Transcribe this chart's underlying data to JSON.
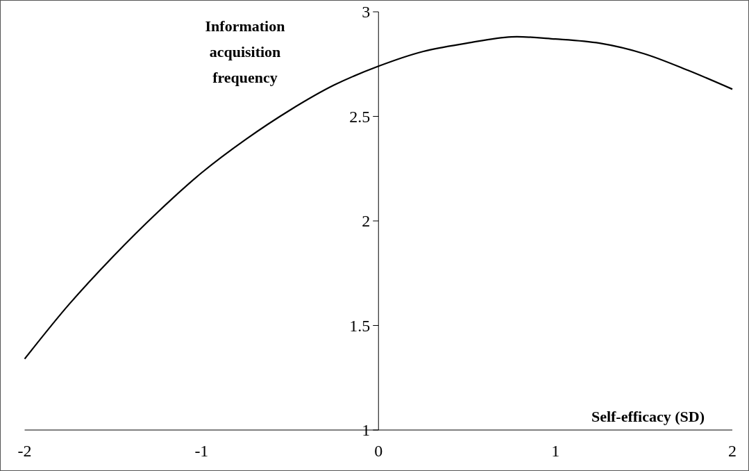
{
  "chart_data": {
    "type": "line",
    "xlabel": "Self-efficacy (SD)",
    "ylabel": "Information acquisition frequency",
    "x": [
      -2,
      -1.75,
      -1.5,
      -1.25,
      -1,
      -0.75,
      -0.5,
      -0.25,
      0,
      0.25,
      0.5,
      0.75,
      1,
      1.25,
      1.5,
      1.75,
      2
    ],
    "series": [
      {
        "color": "#000000",
        "values": [
          1.34,
          1.6,
          1.83,
          2.04,
          2.23,
          2.39,
          2.53,
          2.65,
          2.74,
          2.81,
          2.85,
          2.88,
          2.87,
          2.85,
          2.8,
          2.72,
          2.63
        ]
      }
    ],
    "xlim": [
      -2,
      2
    ],
    "ylim": [
      1,
      3
    ],
    "xticks": [
      -2,
      -1,
      0,
      1,
      2
    ],
    "yticks": [
      1,
      1.5,
      2,
      2.5,
      3
    ],
    "grid": false,
    "marker": "none",
    "line_style": "solid"
  }
}
